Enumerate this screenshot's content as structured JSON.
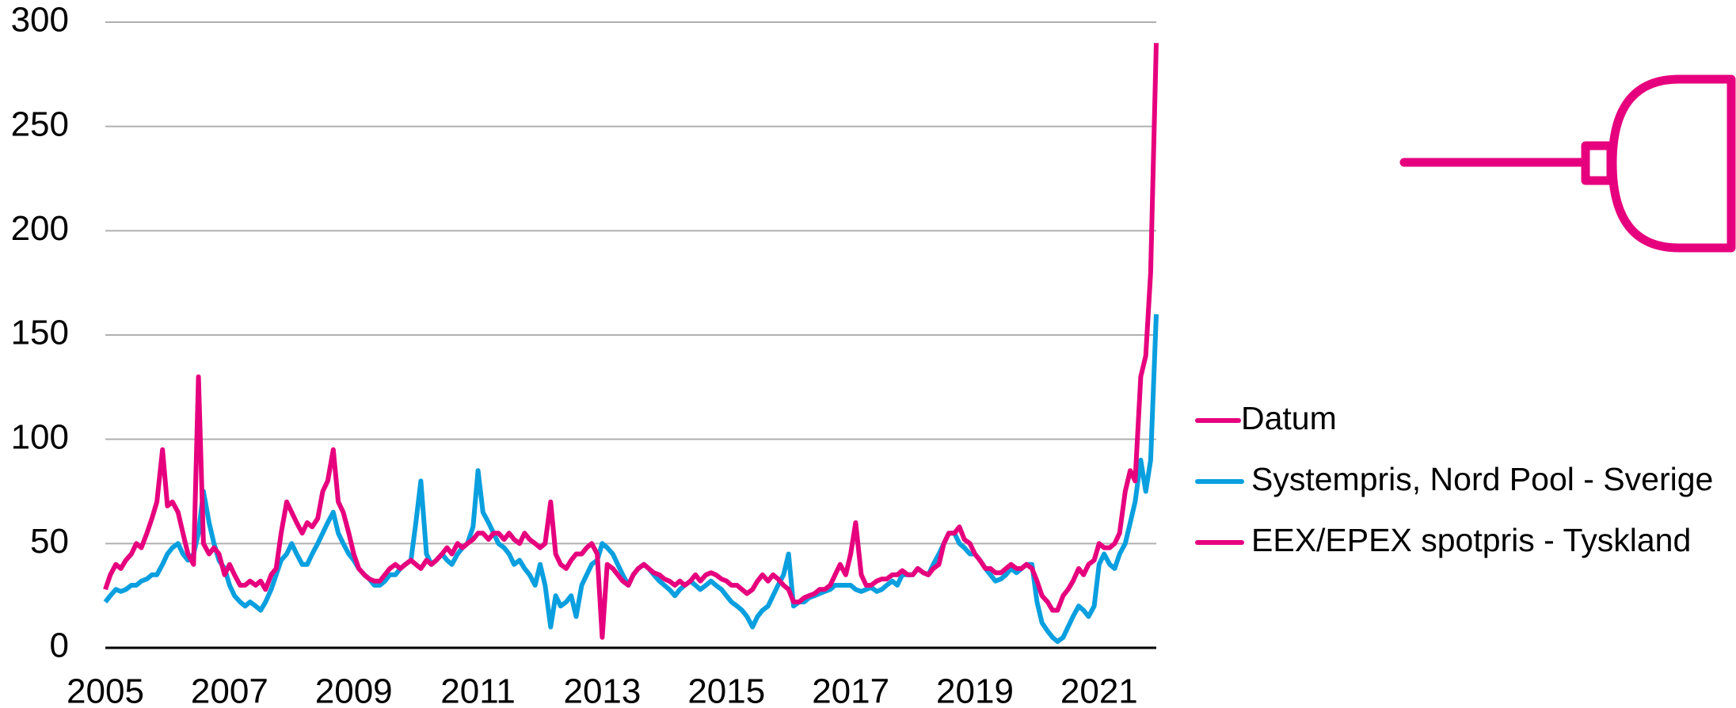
{
  "chart_data": {
    "type": "line",
    "xlim": [
      2005,
      2021.92
    ],
    "xticks": [
      2005,
      2007,
      2009,
      2011,
      2013,
      2015,
      2017,
      2019,
      2021
    ],
    "ylim": [
      0,
      300
    ],
    "yticks": [
      0,
      50,
      100,
      150,
      200,
      250,
      300
    ],
    "grid": true,
    "extra_legend_entries": [
      {
        "name": "Datum",
        "color": "#e6007e"
      }
    ],
    "x": [
      2005,
      2005.08,
      2005.17,
      2005.25,
      2005.33,
      2005.42,
      2005.5,
      2005.58,
      2005.67,
      2005.75,
      2005.83,
      2005.92,
      2006,
      2006.08,
      2006.17,
      2006.25,
      2006.33,
      2006.42,
      2006.5,
      2006.58,
      2006.67,
      2006.75,
      2006.83,
      2006.92,
      2007,
      2007.08,
      2007.17,
      2007.25,
      2007.33,
      2007.42,
      2007.5,
      2007.58,
      2007.67,
      2007.75,
      2007.83,
      2007.92,
      2008,
      2008.08,
      2008.17,
      2008.25,
      2008.33,
      2008.42,
      2008.5,
      2008.58,
      2008.67,
      2008.75,
      2008.83,
      2008.92,
      2009,
      2009.08,
      2009.17,
      2009.25,
      2009.33,
      2009.42,
      2009.5,
      2009.58,
      2009.67,
      2009.75,
      2009.83,
      2009.92,
      2010,
      2010.08,
      2010.17,
      2010.25,
      2010.33,
      2010.42,
      2010.5,
      2010.58,
      2010.67,
      2010.75,
      2010.83,
      2010.92,
      2011,
      2011.08,
      2011.17,
      2011.25,
      2011.33,
      2011.42,
      2011.5,
      2011.58,
      2011.67,
      2011.75,
      2011.83,
      2011.92,
      2012,
      2012.08,
      2012.17,
      2012.25,
      2012.33,
      2012.42,
      2012.5,
      2012.58,
      2012.67,
      2012.75,
      2012.83,
      2012.92,
      2013,
      2013.08,
      2013.17,
      2013.25,
      2013.33,
      2013.42,
      2013.5,
      2013.58,
      2013.67,
      2013.75,
      2013.83,
      2013.92,
      2014,
      2014.08,
      2014.17,
      2014.25,
      2014.33,
      2014.42,
      2014.5,
      2014.58,
      2014.67,
      2014.75,
      2014.83,
      2014.92,
      2015,
      2015.08,
      2015.17,
      2015.25,
      2015.33,
      2015.42,
      2015.5,
      2015.58,
      2015.67,
      2015.75,
      2015.83,
      2015.92,
      2016,
      2016.08,
      2016.17,
      2016.25,
      2016.33,
      2016.42,
      2016.5,
      2016.58,
      2016.67,
      2016.75,
      2016.83,
      2016.92,
      2017,
      2017.08,
      2017.17,
      2017.25,
      2017.33,
      2017.42,
      2017.5,
      2017.58,
      2017.67,
      2017.75,
      2017.83,
      2017.92,
      2018,
      2018.08,
      2018.17,
      2018.25,
      2018.33,
      2018.42,
      2018.5,
      2018.58,
      2018.67,
      2018.75,
      2018.83,
      2018.92,
      2019,
      2019.08,
      2019.17,
      2019.25,
      2019.33,
      2019.42,
      2019.5,
      2019.58,
      2019.67,
      2019.75,
      2019.83,
      2019.92,
      2020,
      2020.08,
      2020.17,
      2020.25,
      2020.33,
      2020.42,
      2020.5,
      2020.58,
      2020.67,
      2020.75,
      2020.83,
      2020.92,
      2021,
      2021.08,
      2021.17,
      2021.25,
      2021.33,
      2021.42,
      2021.5,
      2021.58,
      2021.67,
      2021.75,
      2021.83,
      2021.92
    ],
    "series": [
      {
        "name": "Systempris, Nord Pool - Sverige",
        "color": "#0a9fdf",
        "values": [
          22,
          25,
          28,
          27,
          28,
          30,
          30,
          32,
          33,
          35,
          35,
          40,
          45,
          48,
          50,
          45,
          42,
          45,
          55,
          75,
          60,
          50,
          42,
          38,
          30,
          25,
          22,
          20,
          22,
          20,
          18,
          22,
          28,
          35,
          42,
          45,
          50,
          45,
          40,
          40,
          45,
          50,
          55,
          60,
          65,
          55,
          50,
          45,
          42,
          38,
          35,
          33,
          30,
          30,
          32,
          35,
          35,
          38,
          40,
          42,
          60,
          80,
          45,
          40,
          42,
          45,
          42,
          40,
          45,
          48,
          50,
          58,
          85,
          65,
          60,
          55,
          50,
          48,
          45,
          40,
          42,
          38,
          35,
          30,
          40,
          30,
          10,
          25,
          20,
          22,
          25,
          15,
          30,
          35,
          40,
          42,
          50,
          48,
          45,
          40,
          35,
          30,
          35,
          38,
          40,
          38,
          35,
          32,
          30,
          28,
          25,
          28,
          30,
          32,
          30,
          28,
          30,
          32,
          30,
          28,
          25,
          22,
          20,
          18,
          15,
          10,
          15,
          18,
          20,
          25,
          30,
          35,
          45,
          20,
          22,
          22,
          24,
          25,
          26,
          27,
          28,
          30,
          30,
          30,
          30,
          28,
          27,
          28,
          29,
          27,
          28,
          30,
          32,
          30,
          35,
          35,
          35,
          38,
          36,
          35,
          40,
          45,
          50,
          55,
          55,
          50,
          48,
          45,
          45,
          42,
          38,
          35,
          32,
          33,
          35,
          38,
          36,
          38,
          40,
          40,
          22,
          12,
          8,
          5,
          3,
          5,
          10,
          15,
          20,
          18,
          15,
          20,
          40,
          45,
          40,
          38,
          45,
          50,
          60,
          70,
          90,
          75,
          90,
          160
        ]
      },
      {
        "name": "EEX/EPEX spotpris - Tyskland",
        "color": "#e6007e",
        "values": [
          28,
          35,
          40,
          38,
          42,
          45,
          50,
          48,
          55,
          62,
          70,
          95,
          68,
          70,
          65,
          55,
          45,
          40,
          130,
          50,
          45,
          48,
          45,
          35,
          40,
          35,
          30,
          30,
          32,
          30,
          32,
          28,
          35,
          38,
          55,
          70,
          65,
          60,
          55,
          60,
          58,
          62,
          75,
          80,
          95,
          70,
          65,
          55,
          45,
          38,
          35,
          33,
          32,
          32,
          35,
          38,
          40,
          38,
          40,
          42,
          40,
          38,
          42,
          40,
          42,
          45,
          48,
          45,
          50,
          48,
          50,
          52,
          55,
          55,
          52,
          55,
          55,
          52,
          55,
          52,
          50,
          55,
          52,
          50,
          48,
          50,
          70,
          45,
          40,
          38,
          42,
          45,
          45,
          48,
          50,
          45,
          5,
          40,
          38,
          35,
          32,
          30,
          35,
          38,
          40,
          38,
          36,
          35,
          33,
          32,
          30,
          32,
          30,
          32,
          35,
          32,
          35,
          36,
          35,
          33,
          32,
          30,
          30,
          28,
          26,
          28,
          32,
          35,
          32,
          35,
          33,
          30,
          28,
          22,
          22,
          24,
          25,
          26,
          28,
          28,
          30,
          35,
          40,
          35,
          45,
          60,
          35,
          30,
          30,
          32,
          33,
          33,
          35,
          35,
          37,
          35,
          35,
          38,
          36,
          35,
          38,
          40,
          50,
          55,
          55,
          58,
          52,
          50,
          45,
          42,
          38,
          38,
          36,
          36,
          38,
          40,
          38,
          38,
          40,
          38,
          32,
          25,
          22,
          18,
          18,
          25,
          28,
          32,
          38,
          35,
          40,
          42,
          50,
          48,
          48,
          50,
          55,
          75,
          85,
          80,
          130,
          140,
          180,
          290
        ]
      }
    ]
  }
}
